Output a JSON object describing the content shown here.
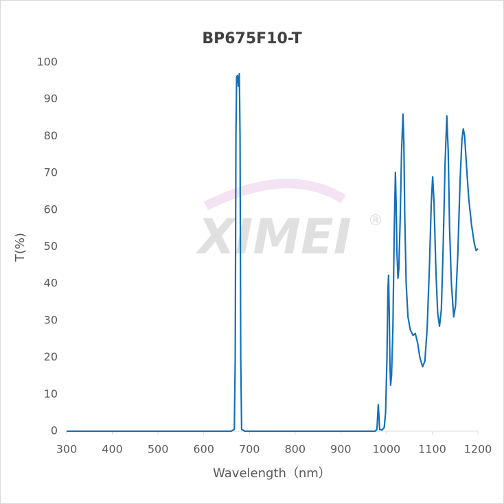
{
  "chart_data": {
    "type": "line",
    "title": "BP675F10-T",
    "x_label": "Wavelength（nm）",
    "y_label": "T(%)",
    "watermark": "XIMEI",
    "watermark_mark": "®",
    "xlim": [
      300,
      1200
    ],
    "xticks": [
      300,
      400,
      500,
      600,
      700,
      800,
      900,
      1000,
      1100,
      1200
    ],
    "ylim": [
      0,
      100
    ],
    "yticks": [
      0,
      10,
      20,
      30,
      40,
      50,
      60,
      70,
      80,
      90,
      100
    ],
    "grid": false,
    "series": [
      {
        "name": "T",
        "color": "#1570b8",
        "x": [
          300,
          660,
          667,
          669,
          670.5,
          672,
          674,
          676,
          678,
          679.5,
          681,
          683,
          690,
          975,
          979,
          981,
          982,
          983,
          985,
          990,
          995,
          998,
          1001,
          1003,
          1004.5,
          1006,
          1007.5,
          1009,
          1011,
          1014,
          1017,
          1019.5,
          1021,
          1023,
          1025,
          1027,
          1030,
          1033,
          1036,
          1038,
          1040,
          1043,
          1047,
          1052,
          1058,
          1063,
          1068,
          1073,
          1079,
          1084,
          1089,
          1094,
          1098,
          1101,
          1104,
          1108,
          1112,
          1116,
          1120,
          1124,
          1128,
          1132,
          1135,
          1138,
          1142,
          1147,
          1151,
          1156,
          1161,
          1165,
          1168,
          1171,
          1175,
          1180,
          1186,
          1192,
          1196,
          1200
        ],
        "values": [
          0,
          0,
          0.5,
          20,
          80,
          96,
          96.5,
          93.5,
          97,
          80,
          20,
          0.5,
          0,
          0,
          0.5,
          5,
          7.2,
          5,
          0.5,
          0.3,
          1,
          5,
          20,
          38,
          42.3,
          32,
          18,
          12.5,
          15,
          28,
          55,
          70.2,
          62,
          48,
          41.5,
          44,
          58,
          76,
          86,
          78,
          58,
          40,
          31,
          27.5,
          26,
          26.5,
          24,
          20,
          17.5,
          19,
          28,
          45,
          62,
          69,
          62,
          44,
          32,
          28.5,
          33,
          50,
          72,
          85.5,
          76,
          55,
          40,
          31,
          34,
          48,
          68,
          79,
          82,
          80,
          72,
          63,
          56,
          51,
          49,
          49.5
        ]
      }
    ]
  }
}
